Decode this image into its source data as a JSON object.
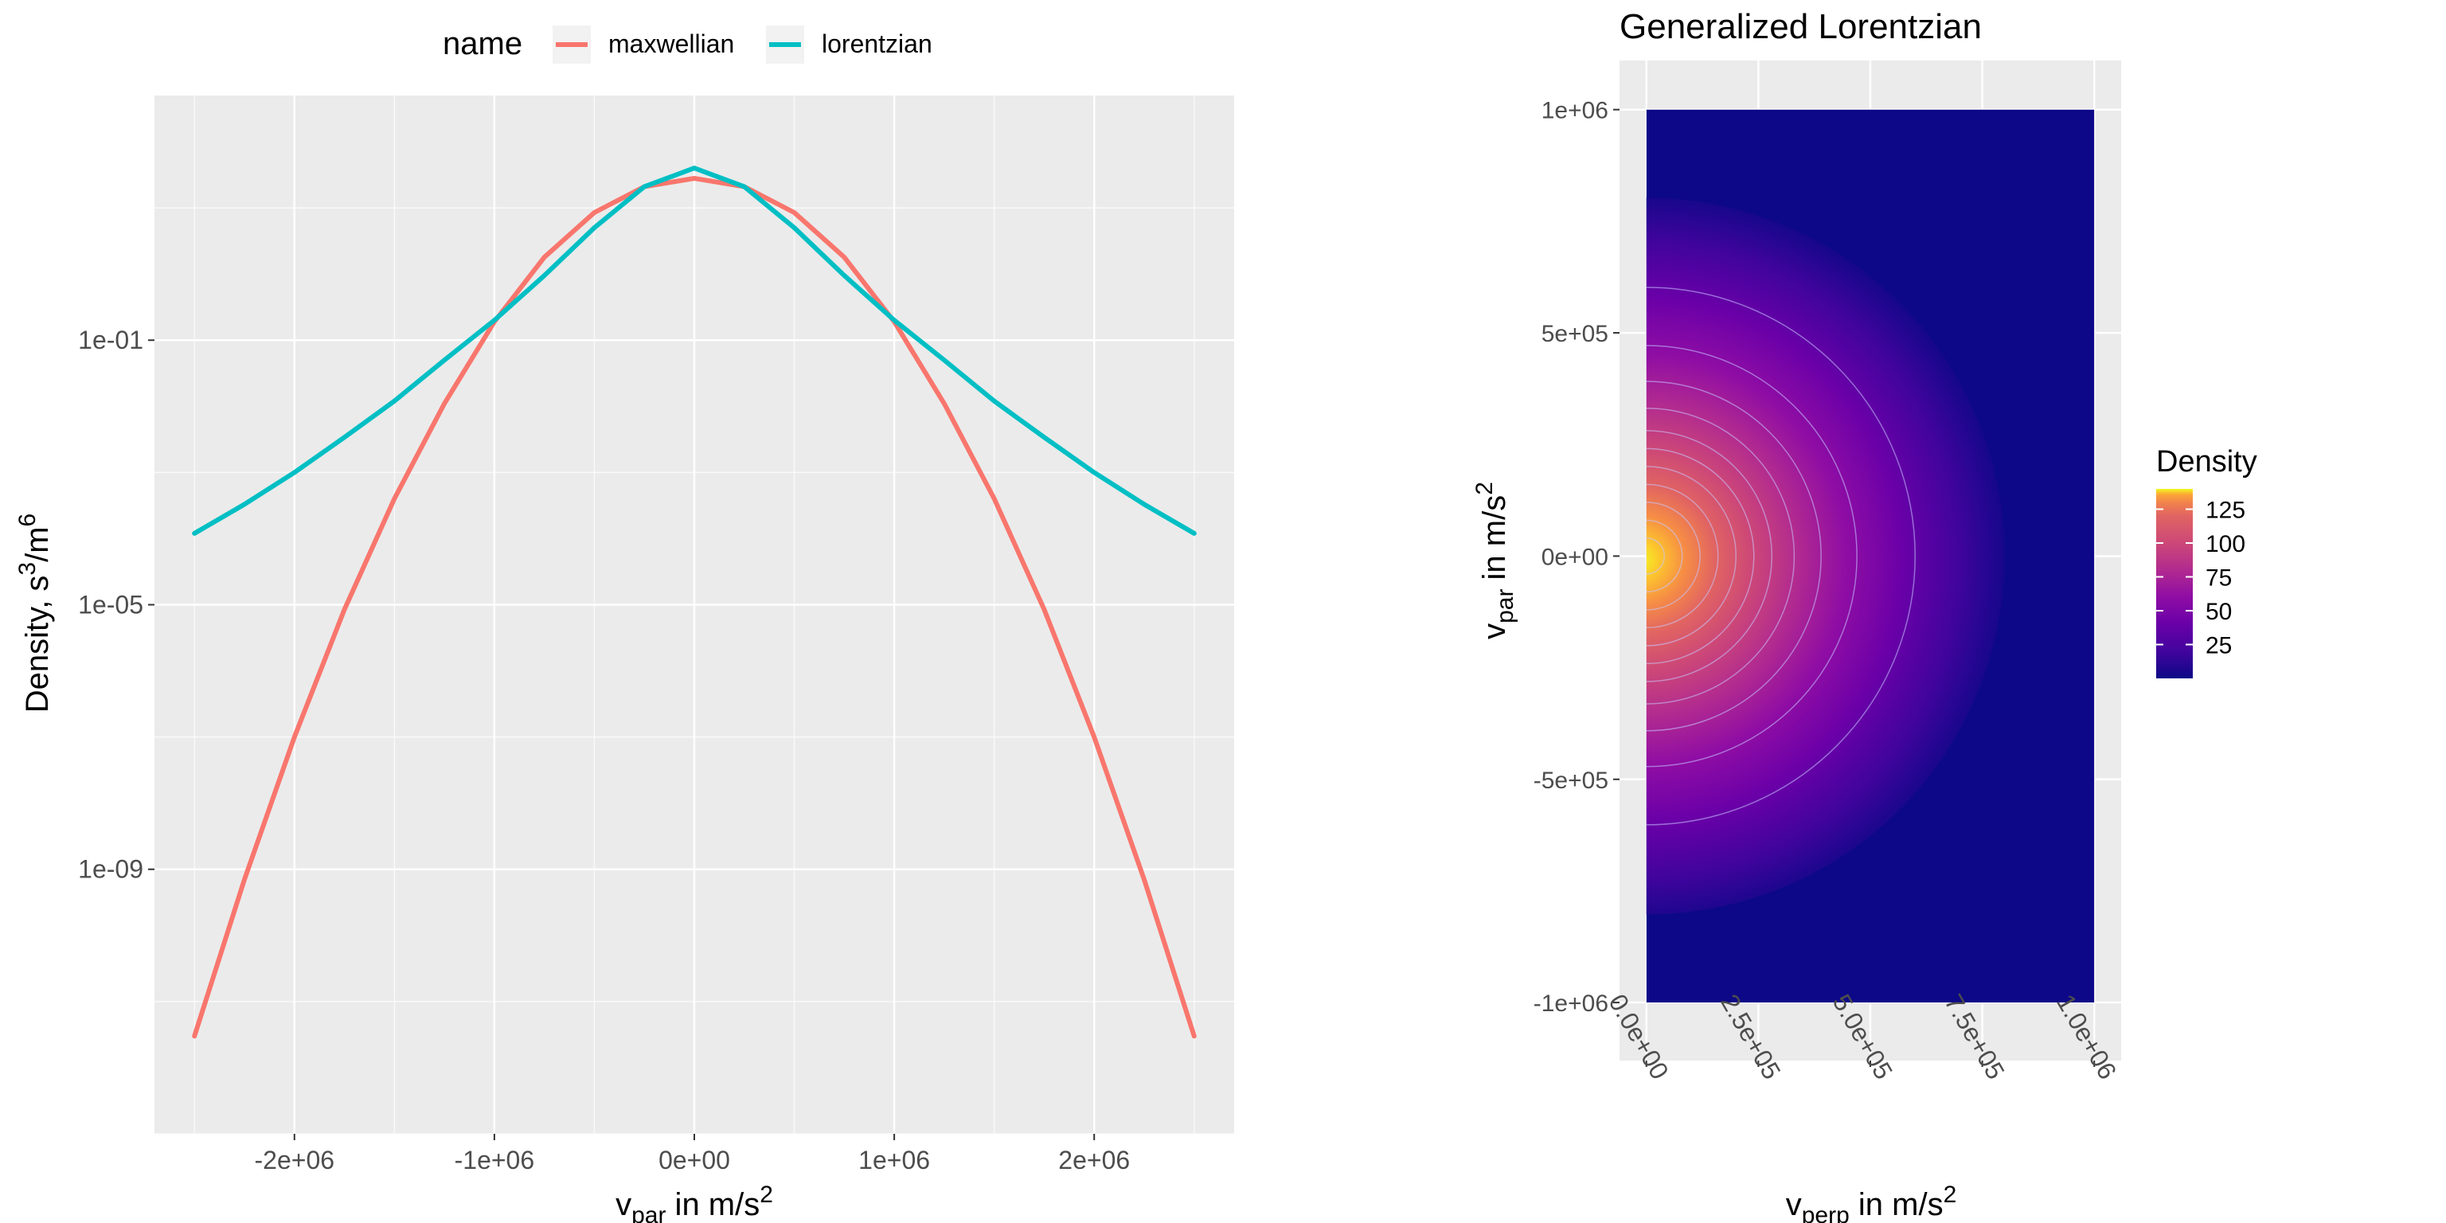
{
  "chart_data": [
    {
      "type": "line",
      "title": "",
      "y_log_scale": true,
      "xlabel": {
        "main": "v",
        "sub": "par",
        "after": " in m/s",
        "sup": "2"
      },
      "ylabel": {
        "main": "Density, s",
        "sup1": "3",
        "mid": "/m",
        "sup2": "6"
      },
      "xlim": [
        -2700000,
        2700000
      ],
      "ylim": [
        1e-13,
        500
      ],
      "x_ticks": [
        {
          "value": -2000000,
          "label": "-2e+06"
        },
        {
          "value": -1000000,
          "label": "-1e+06"
        },
        {
          "value": 0,
          "label": "0e+00"
        },
        {
          "value": 1000000,
          "label": "1e+06"
        },
        {
          "value": 2000000,
          "label": "2e+06"
        }
      ],
      "y_ticks": [
        {
          "value": 0.1,
          "label": "1e-01"
        },
        {
          "value": 1e-05,
          "label": "1e-05"
        },
        {
          "value": 1e-09,
          "label": "1e-09"
        }
      ],
      "grid": true,
      "legend": {
        "position": "top",
        "title": "name",
        "items": [
          {
            "label": "maxwellian",
            "color": "#F8766D"
          },
          {
            "label": "lorentzian",
            "color": "#00BFC4"
          }
        ]
      },
      "series": [
        {
          "name": "maxwellian",
          "color": "#F8766D",
          "x": [
            -2500000,
            -2250000,
            -2000000,
            -1750000,
            -1500000,
            -1250000,
            -1000000,
            -750000,
            -500000,
            -250000,
            0,
            250000,
            500000,
            750000,
            1000000,
            1250000,
            1500000,
            1750000,
            2000000,
            2250000,
            2500000
          ],
          "y": [
            3e-12,
            7e-10,
            1e-07,
            8.5e-06,
            0.0004,
            0.011,
            0.19,
            1.8,
            8.5,
            21,
            28,
            21,
            8.5,
            1.8,
            0.19,
            0.011,
            0.0004,
            8.5e-06,
            1e-07,
            7e-10,
            3e-12
          ]
        },
        {
          "name": "lorentzian",
          "color": "#00BFC4",
          "x": [
            -2500000,
            -2250000,
            -2000000,
            -1750000,
            -1500000,
            -1250000,
            -1000000,
            -750000,
            -500000,
            -250000,
            0,
            250000,
            500000,
            750000,
            1000000,
            1250000,
            1500000,
            1750000,
            2000000,
            2250000,
            2500000
          ],
          "y": [
            0.00012,
            0.00033,
            0.001,
            0.0034,
            0.012,
            0.05,
            0.2,
            0.95,
            5.0,
            21,
            40,
            21,
            5.0,
            0.95,
            0.2,
            0.05,
            0.012,
            0.0034,
            0.001,
            0.00033,
            0.00012
          ]
        }
      ]
    },
    {
      "type": "heatmap",
      "title": "Generalized Lorentzian",
      "xlabel": {
        "main": "v",
        "sub": "perp",
        "after": " in m/s",
        "sup": "2"
      },
      "ylabel": {
        "main": "v",
        "sub": "par",
        "after": " in m/s",
        "sup": "2"
      },
      "xlim": [
        -60000,
        1060000
      ],
      "ylim": [
        -1130000,
        1110000
      ],
      "data_extent": {
        "x": [
          0,
          1000000
        ],
        "y": [
          -1000000,
          1000000
        ]
      },
      "x_ticks": [
        {
          "value": 0,
          "label": "0.0e+00"
        },
        {
          "value": 250000,
          "label": "2.5e+05"
        },
        {
          "value": 500000,
          "label": "5.0e+05"
        },
        {
          "value": 750000,
          "label": "7.5e+05"
        },
        {
          "value": 1000000,
          "label": "1.0e+06"
        }
      ],
      "y_ticks": [
        {
          "value": 1000000,
          "label": "1e+06"
        },
        {
          "value": 500000,
          "label": "5e+05"
        },
        {
          "value": 0,
          "label": "0e+00"
        },
        {
          "value": -500000,
          "label": "-5e+05"
        },
        {
          "value": -1000000,
          "label": "-1e+06"
        }
      ],
      "peak_density": 140,
      "contour_radii": [
        40000,
        80000,
        120000,
        160000,
        200000,
        240000,
        280000,
        330000,
        390000,
        470000,
        600000
      ],
      "colorbar": {
        "title": "Density",
        "range": [
          0,
          140
        ],
        "ticks": [
          {
            "value": 125,
            "label": "125"
          },
          {
            "value": 100,
            "label": "100"
          },
          {
            "value": 75,
            "label": "75"
          },
          {
            "value": 50,
            "label": "50"
          },
          {
            "value": 25,
            "label": "25"
          }
        ],
        "colormap": "plasma"
      }
    }
  ]
}
